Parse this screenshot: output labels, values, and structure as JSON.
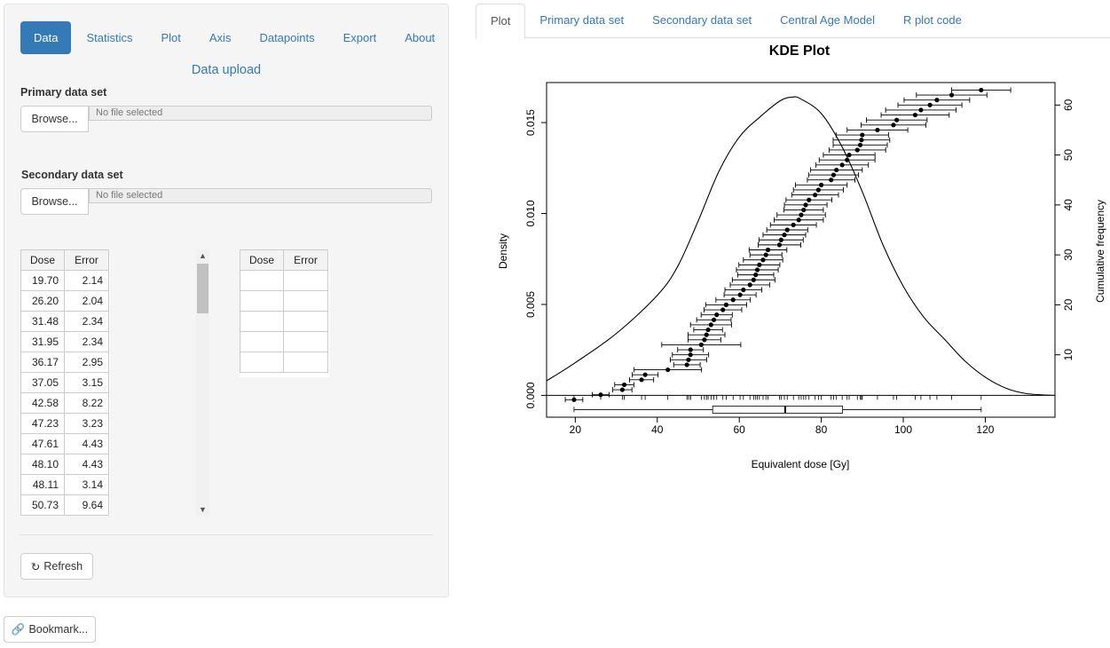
{
  "sidebar": {
    "nav": [
      "Data",
      "Statistics",
      "Plot",
      "Axis",
      "Datapoints",
      "Export",
      "About"
    ],
    "active_nav": "Data",
    "section_title": "Data upload",
    "primary": {
      "label": "Primary data set",
      "browse": "Browse...",
      "file": "No file selected"
    },
    "secondary": {
      "label": "Secondary data set",
      "browse": "Browse...",
      "file": "No file selected"
    },
    "table_headers": [
      "Dose",
      "Error"
    ],
    "primary_rows": [
      [
        "19.70",
        "2.14"
      ],
      [
        "26.20",
        "2.04"
      ],
      [
        "31.48",
        "2.34"
      ],
      [
        "31.95",
        "2.34"
      ],
      [
        "36.17",
        "2.95"
      ],
      [
        "37.05",
        "3.15"
      ],
      [
        "42.58",
        "8.22"
      ],
      [
        "47.23",
        "3.23"
      ],
      [
        "47.61",
        "4.43"
      ],
      [
        "48.10",
        "4.43"
      ],
      [
        "48.11",
        "3.14"
      ],
      [
        "50.73",
        "9.64"
      ]
    ],
    "secondary_rows": 5,
    "refresh_label": "Refresh"
  },
  "bookmark_label": "Bookmark...",
  "tabs": [
    "Plot",
    "Primary data set",
    "Secondary data set",
    "Central Age Model",
    "R plot code"
  ],
  "active_tab": "Plot",
  "chart_data": {
    "type": "line",
    "title": "KDE Plot",
    "xlabel": "Equivalent dose [Gy]",
    "ylabel": "Density",
    "y2label": "Cumulative frequency",
    "xlim": [
      13,
      137
    ],
    "ylim": [
      -0.0012,
      0.0172
    ],
    "y2lim": [
      -2.5,
      64.5
    ],
    "x_ticks": [
      20,
      40,
      60,
      80,
      100,
      120
    ],
    "y_ticks": [
      0.0,
      0.005,
      0.01,
      0.015
    ],
    "y_tick_labels": [
      "0.000",
      "0.005",
      "0.010",
      "0.015"
    ],
    "y2_ticks": [
      10,
      20,
      30,
      40,
      50,
      60
    ],
    "kde": {
      "x": [
        13,
        20,
        30,
        40,
        45,
        50,
        55,
        60,
        65,
        70,
        73,
        75,
        80,
        85,
        90,
        95,
        100,
        105,
        110,
        115,
        120,
        125,
        130,
        137
      ],
      "y": [
        0.0008,
        0.0018,
        0.0034,
        0.0055,
        0.0071,
        0.0096,
        0.0123,
        0.0142,
        0.0153,
        0.0162,
        0.0164,
        0.0163,
        0.0155,
        0.0137,
        0.0112,
        0.0083,
        0.006,
        0.0043,
        0.0031,
        0.0019,
        0.001,
        0.0004,
        0.0001,
        0.0
      ]
    },
    "points": [
      [
        19.7,
        2.14
      ],
      [
        26.2,
        2.04
      ],
      [
        31.48,
        2.34
      ],
      [
        31.95,
        2.34
      ],
      [
        36.17,
        2.95
      ],
      [
        37.05,
        3.15
      ],
      [
        42.58,
        8.22
      ],
      [
        47.23,
        3.23
      ],
      [
        47.61,
        4.43
      ],
      [
        48.1,
        4.43
      ],
      [
        48.11,
        3.14
      ],
      [
        50.73,
        9.64
      ],
      [
        51.5,
        4.0
      ],
      [
        52.0,
        4.5
      ],
      [
        52.4,
        3.5
      ],
      [
        53.1,
        5.0
      ],
      [
        53.8,
        4.2
      ],
      [
        54.5,
        3.8
      ],
      [
        56.0,
        4.6
      ],
      [
        56.8,
        5.0
      ],
      [
        58.5,
        4.2
      ],
      [
        60.2,
        3.9
      ],
      [
        61.0,
        4.5
      ],
      [
        62.6,
        4.8
      ],
      [
        63.5,
        5.2
      ],
      [
        64.0,
        4.4
      ],
      [
        64.4,
        5.1
      ],
      [
        64.9,
        5.0
      ],
      [
        65.8,
        4.8
      ],
      [
        66.5,
        3.9
      ],
      [
        67.0,
        4.6
      ],
      [
        69.8,
        5.2
      ],
      [
        70.2,
        5.4
      ],
      [
        71.0,
        5.2
      ],
      [
        71.7,
        5.0
      ],
      [
        73.2,
        5.6
      ],
      [
        74.5,
        6.0
      ],
      [
        75.1,
        5.9
      ],
      [
        75.7,
        4.8
      ],
      [
        76.2,
        5.2
      ],
      [
        77.0,
        5.6
      ],
      [
        78.5,
        5.7
      ],
      [
        79.3,
        6.1
      ],
      [
        80.0,
        6.3
      ],
      [
        82.4,
        5.8
      ],
      [
        83.0,
        6.1
      ],
      [
        83.7,
        6.3
      ],
      [
        85.1,
        6.4
      ],
      [
        86.3,
        6.8
      ],
      [
        86.8,
        6.3
      ],
      [
        88.8,
        6.9
      ],
      [
        89.5,
        6.6
      ],
      [
        89.8,
        6.9
      ],
      [
        90.0,
        6.4
      ],
      [
        93.7,
        7.4
      ],
      [
        97.6,
        7.9
      ],
      [
        98.4,
        7.4
      ],
      [
        102.9,
        8.3
      ],
      [
        104.3,
        8.6
      ],
      [
        106.5,
        7.8
      ],
      [
        108.2,
        8.0
      ],
      [
        111.8,
        8.6
      ],
      [
        119.0,
        7.2
      ]
    ],
    "boxplot": {
      "whisker_low": 19.7,
      "q1": 53.5,
      "median": 71.2,
      "q3": 85.2,
      "whisker_high": 119.0
    }
  }
}
